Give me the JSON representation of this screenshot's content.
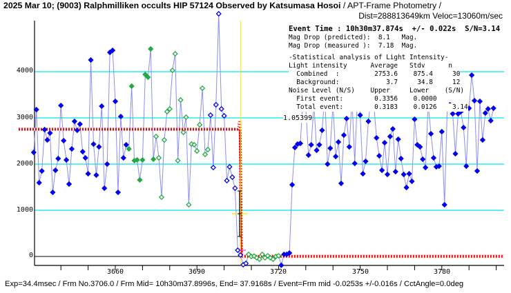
{
  "header": {
    "title": "2025 Mar 10; (9003) Ralphmilliken occults HIP 57124 Observed by Katsumasa Hosoi",
    "subtitle": " / APT-Frame Photometry /",
    "dist": "Dist=288813649km Veloc=13060m/sec"
  },
  "info": {
    "event_time": "Event Time : 10h30m37.874s  +/- 0.022s  S/N=3.14",
    "mag_pred": "Mag Drop (predicted):  8.1   Mag.",
    "mag_meas": "Mag Drop (measured ):  7.18  Mag.",
    "stat_title": "-Statistical analysis of Light Intensity-",
    "hdr1": "Light intensity      Average   Stdv      n",
    "combined": "  Combined  :         2753.6    875.4     30",
    "background": "  Background:            3.7     34.8     12",
    "hdr2": "Noise Level (N/S)    Upper     Lower    (S/N)",
    "first": "  First event:        0.3356    0.0000",
    "total": "  Total event:        0.3183    0.0126    3.14",
    "threshold": "1.05399"
  },
  "footer": "Exp=34.4msec / Frm No.3706.0 / Frm Mid= 10h30m37.8996s,  End= 37.9168s / Event=Frm mid -0.0253s +/-0.016s / CctAngle=0.0deg",
  "chart_data": {
    "type": "line",
    "xlim": [
      3630.3,
      3802
    ],
    "ylim": [
      -200,
      5300
    ],
    "x_ticks": [
      "3660",
      "3690",
      "3720",
      "3750",
      "3780"
    ],
    "x_tick_values": [
      3660,
      3690,
      3720,
      3750,
      3780
    ],
    "y_ticks": [
      "4000",
      "3000",
      "2000",
      "1000",
      "0"
    ],
    "y_tick_values": [
      4000,
      3000,
      2000,
      1000,
      0
    ],
    "first_frame": 3630,
    "values": [
      2254,
      3179,
      1597,
      1851,
      2746,
      2522,
      2672,
      1388,
      1866,
      2119,
      3269,
      2507,
      2090,
      1567,
      2328,
      2925,
      2731,
      2866,
      2269,
      2134,
      1791,
      4254,
      2433,
      1761,
      2373,
      3254,
      1478,
      2000,
      4418,
      4463,
      3358,
      1388,
      3030,
      2134,
      2418,
      2328,
      3687,
      2075,
      2090,
      1657,
      2090,
      3940,
      3881,
      4493,
      2104,
      2597,
      2134,
      1284,
      2522,
      3134,
      3194,
      4030,
      4388,
      2075,
      3388,
      2687,
      3015,
      1119,
      2433,
      2418,
      2284,
      2851,
      3642,
      2209,
      2313,
      3060,
      1925,
      3284,
      5254,
      3194,
      3045,
      1642,
      1940,
      1716,
      1478,
      134,
      30,
      -180,
      -150,
      45,
      0,
      10,
      -30,
      -60,
      45,
      -30,
      15,
      -30,
      -60,
      0,
      15,
      -190,
      45,
      45,
      75,
      1552,
      2358,
      2433,
      2448,
      3400,
      3200,
      2194,
      2418,
      3300,
      2299,
      2418,
      2731,
      3500,
      2000,
      2343,
      3300,
      2164,
      2478,
      1582,
      2627,
      2985,
      2373,
      3400,
      2015,
      3500,
      3060,
      1791,
      2060,
      2925,
      3400,
      3300,
      2567,
      2179,
      1866,
      2463,
      1776,
      2597,
      2761,
      1836,
      2537,
      2119,
      1776,
      1493,
      1791,
      1627,
      2970,
      2418,
      2373,
      2104,
      1925,
      3300,
      2657,
      2134,
      1940,
      1955,
      2702,
      1119,
      3200,
      3284,
      3090,
      2224,
      3090,
      3134,
      2791,
      1955,
      3209,
      3925,
      3373,
      1851,
      3358,
      2522,
      3104,
      3194,
      2940,
      3209
    ],
    "point_styles": [
      {
        "from": 0,
        "to": 34,
        "kind": "blue-filled"
      },
      {
        "from": 35,
        "to": 44,
        "kind": "green-filled"
      },
      {
        "from": 45,
        "to": 64,
        "kind": "green-hollow"
      },
      {
        "from": 65,
        "to": 78,
        "kind": "blue-hollow"
      },
      {
        "from": 79,
        "to": 90,
        "kind": "green-hollow"
      },
      {
        "from": 91,
        "to": 169,
        "kind": "blue-filled"
      }
    ],
    "model": {
      "level_before": 2753.6,
      "level_after": 3.7,
      "event_frame": 3706.0
    },
    "threshold_levels": [
      4000,
      3000,
      2000,
      1000
    ],
    "colors": {
      "blue": "#0000ee",
      "green": "#22aa44",
      "line": "#8c8cf0",
      "model": "#ff0000",
      "grid": "#00e5f0",
      "event": "#ffee00"
    }
  }
}
